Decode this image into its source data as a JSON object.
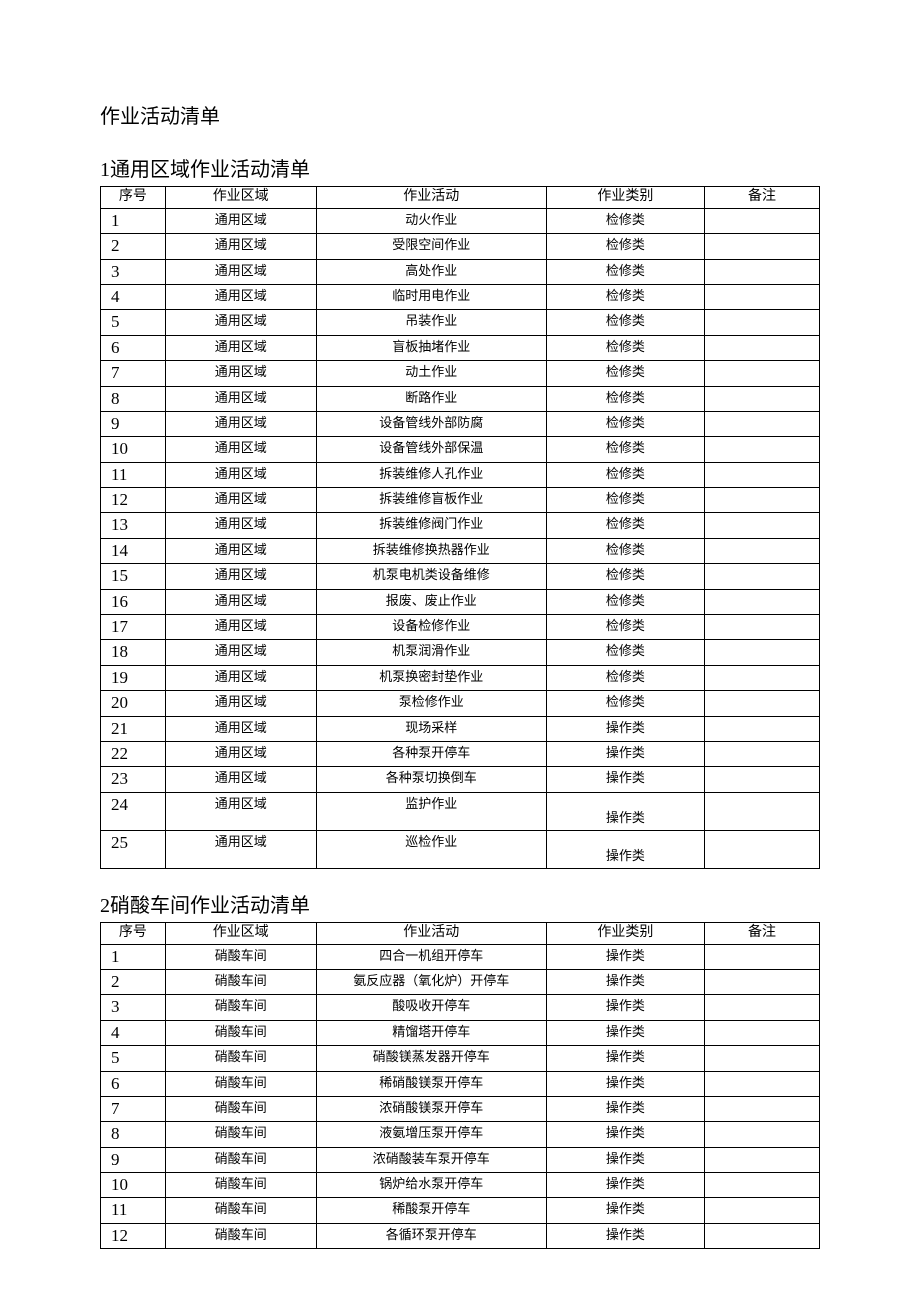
{
  "doc_title": "作业活动清单",
  "section1": {
    "num": "1",
    "title": "通用区域作业活动清单",
    "headers": [
      "序号",
      "作业区域",
      "作业活动",
      "作业类别",
      "备注"
    ],
    "rows": [
      {
        "seq": "1",
        "area": "通用区域",
        "act": "动火作业",
        "cat": "检修类",
        "note": "",
        "tall": false
      },
      {
        "seq": "2",
        "area": "通用区域",
        "act": "受限空间作业",
        "cat": "检修类",
        "note": "",
        "tall": false
      },
      {
        "seq": "3",
        "area": "通用区域",
        "act": "高处作业",
        "cat": "检修类",
        "note": "",
        "tall": false
      },
      {
        "seq": "4",
        "area": "通用区域",
        "act": "临时用电作业",
        "cat": "检修类",
        "note": "",
        "tall": false
      },
      {
        "seq": "5",
        "area": "通用区域",
        "act": "吊装作业",
        "cat": "检修类",
        "note": "",
        "tall": false
      },
      {
        "seq": "6",
        "area": "通用区域",
        "act": "盲板抽堵作业",
        "cat": "检修类",
        "note": "",
        "tall": false
      },
      {
        "seq": "7",
        "area": "通用区域",
        "act": "动土作业",
        "cat": "检修类",
        "note": "",
        "tall": false
      },
      {
        "seq": "8",
        "area": "通用区域",
        "act": "断路作业",
        "cat": "检修类",
        "note": "",
        "tall": false
      },
      {
        "seq": "9",
        "area": "通用区域",
        "act": "设备管线外部防腐",
        "cat": "检修类",
        "note": "",
        "tall": false
      },
      {
        "seq": "10",
        "area": "通用区域",
        "act": "设备管线外部保温",
        "cat": "检修类",
        "note": "",
        "tall": false
      },
      {
        "seq": "11",
        "area": "通用区域",
        "act": "拆装维修人孔作业",
        "cat": "检修类",
        "note": "",
        "tall": false
      },
      {
        "seq": "12",
        "area": "通用区域",
        "act": "拆装维修盲板作业",
        "cat": "检修类",
        "note": "",
        "tall": false
      },
      {
        "seq": "13",
        "area": "通用区域",
        "act": "拆装维修阀门作业",
        "cat": "检修类",
        "note": "",
        "tall": false
      },
      {
        "seq": "14",
        "area": "通用区域",
        "act": "拆装维修换热器作业",
        "cat": "检修类",
        "note": "",
        "tall": false
      },
      {
        "seq": "15",
        "area": "通用区域",
        "act": "机泵电机类设备维修",
        "cat": "检修类",
        "note": "",
        "tall": false
      },
      {
        "seq": "16",
        "area": "通用区域",
        "act": "报废、废止作业",
        "cat": "检修类",
        "note": "",
        "tall": false
      },
      {
        "seq": "17",
        "area": "通用区域",
        "act": "设备检修作业",
        "cat": "检修类",
        "note": "",
        "tall": false
      },
      {
        "seq": "18",
        "area": "通用区域",
        "act": "机泵润滑作业",
        "cat": "检修类",
        "note": "",
        "tall": false
      },
      {
        "seq": "19",
        "area": "通用区域",
        "act": "机泵换密封垫作业",
        "cat": "检修类",
        "note": "",
        "tall": false
      },
      {
        "seq": "20",
        "area": "通用区域",
        "act": "泵检修作业",
        "cat": "检修类",
        "note": "",
        "tall": false
      },
      {
        "seq": "21",
        "area": "通用区域",
        "act": "现场采样",
        "cat": "操作类",
        "note": "",
        "tall": false
      },
      {
        "seq": "22",
        "area": "通用区域",
        "act": "各种泵开停车",
        "cat": "操作类",
        "note": "",
        "tall": false
      },
      {
        "seq": "23",
        "area": "通用区域",
        "act": "各种泵切换倒车",
        "cat": "操作类",
        "note": "",
        "tall": false
      },
      {
        "seq": "24",
        "area": "通用区域",
        "act": "监护作业",
        "cat": "操作类",
        "note": "",
        "tall": true
      },
      {
        "seq": "25",
        "area": "通用区域",
        "act": "巡检作业",
        "cat": "操作类",
        "note": "",
        "tall": true
      }
    ]
  },
  "section2": {
    "num": "2",
    "title": "硝酸车间作业活动清单",
    "headers": [
      "序号",
      "作业区域",
      "作业活动",
      "作业类别",
      "备注"
    ],
    "rows": [
      {
        "seq": "1",
        "area": "硝酸车间",
        "act": "四合一机组开停车",
        "cat": "操作类",
        "note": "",
        "tall": false
      },
      {
        "seq": "2",
        "area": "硝酸车间",
        "act": "氨反应器（氧化炉）开停车",
        "cat": "操作类",
        "note": "",
        "tall": false
      },
      {
        "seq": "3",
        "area": "硝酸车间",
        "act": "酸吸收开停车",
        "cat": "操作类",
        "note": "",
        "tall": false
      },
      {
        "seq": "4",
        "area": "硝酸车间",
        "act": "精馏塔开停车",
        "cat": "操作类",
        "note": "",
        "tall": false
      },
      {
        "seq": "5",
        "area": "硝酸车间",
        "act": "硝酸镁蒸发器开停车",
        "cat": "操作类",
        "note": "",
        "tall": false
      },
      {
        "seq": "6",
        "area": "硝酸车间",
        "act": "稀硝酸镁泵开停车",
        "cat": "操作类",
        "note": "",
        "tall": false
      },
      {
        "seq": "7",
        "area": "硝酸车间",
        "act": "浓硝酸镁泵开停车",
        "cat": "操作类",
        "note": "",
        "tall": false
      },
      {
        "seq": "8",
        "area": "硝酸车间",
        "act": "液氨增压泵开停车",
        "cat": "操作类",
        "note": "",
        "tall": false
      },
      {
        "seq": "9",
        "area": "硝酸车间",
        "act": "浓硝酸装车泵开停车",
        "cat": "操作类",
        "note": "",
        "tall": false
      },
      {
        "seq": "10",
        "area": "硝酸车间",
        "act": "锅炉给水泵开停车",
        "cat": "操作类",
        "note": "",
        "tall": false
      },
      {
        "seq": "11",
        "area": "硝酸车间",
        "act": "稀酸泵开停车",
        "cat": "操作类",
        "note": "",
        "tall": false
      },
      {
        "seq": "12",
        "area": "硝酸车间",
        "act": "各循环泵开停车",
        "cat": "操作类",
        "note": "",
        "tall": false
      }
    ]
  }
}
